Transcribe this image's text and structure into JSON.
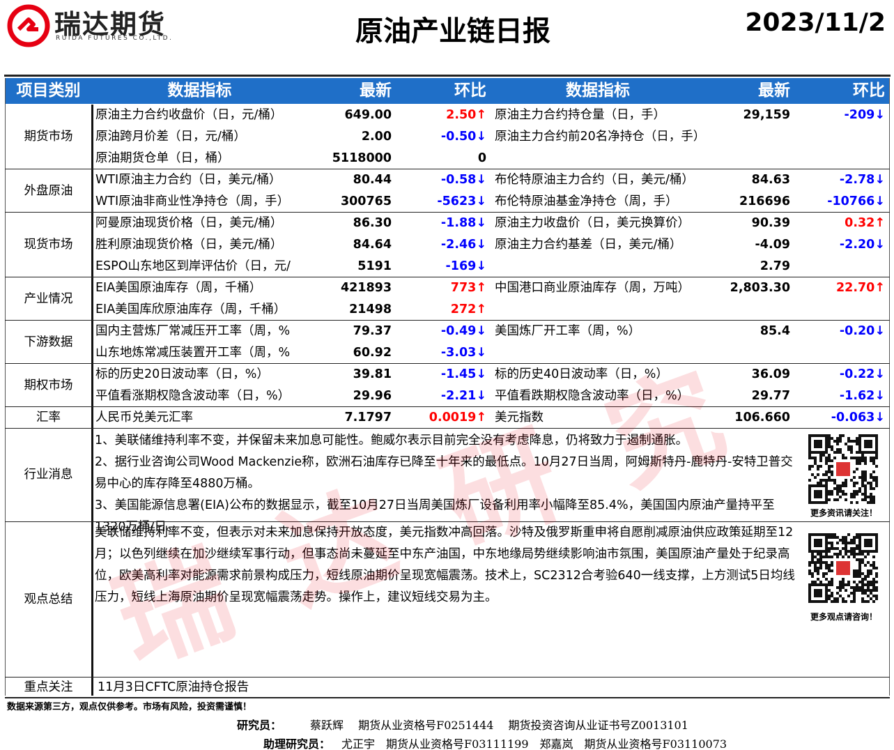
{
  "header": {
    "logo_name": "瑞达期货",
    "logo_en": "RUIDA FUTURES CO.,LTD.",
    "title": "原油产业链日报",
    "date": "2023/11/2"
  },
  "table": {
    "columns": [
      "项目类别",
      "数据指标",
      "最新",
      "环比",
      "数据指标",
      "最新",
      "环比"
    ],
    "groups": [
      {
        "category": "期货市场",
        "rows": [
          [
            "原油主力合约收盘价（日，元/桶）",
            "649.00",
            {
              "text": "2.50↑",
              "color": "#ff0000"
            },
            "原油主力合约持仓量（日，手）",
            "29,159",
            {
              "text": "-209↓",
              "color": "#0000ff"
            }
          ],
          [
            "原油跨月价差（日，元/桶）",
            "2.00",
            {
              "text": "-0.50↓",
              "color": "#0000ff"
            },
            "原油主力合约前20名净持仓（日，手）",
            null,
            null
          ],
          [
            "原油期货仓单（日，桶）",
            "5118000",
            {
              "text": "0",
              "color": "#000000"
            },
            null,
            null,
            null
          ]
        ]
      },
      {
        "category": "外盘原油",
        "rows": [
          [
            "WTI原油主力合约（日，美元/桶）",
            "80.44",
            {
              "text": "-0.58↓",
              "color": "#0000ff"
            },
            "布伦特原油主力合约（日，美元/桶）",
            "84.63",
            {
              "text": "-2.78↓",
              "color": "#0000ff"
            }
          ],
          [
            " WTI原油非商业性净持仓（周，手）",
            "300765",
            {
              "text": "-5623↓",
              "color": "#0000ff"
            },
            "布伦特原油基金净持仓（周，手）",
            "216696",
            {
              "text": "-10766↓",
              "color": "#0000ff"
            }
          ]
        ]
      },
      {
        "category": "现货市场",
        "rows": [
          [
            "阿曼原油现货价格（日，美元/桶）",
            "86.30",
            {
              "text": "-1.88↓",
              "color": "#0000ff"
            },
            "原油主力收盘价（日，美元换算价）",
            "90.39",
            {
              "text": "0.32↑",
              "color": "#ff0000"
            }
          ],
          [
            "胜利原油现货价格（日，美元/桶）",
            "84.64",
            {
              "text": "-2.46↓",
              "color": "#0000ff"
            },
            "原油主力合约基差（日，美元/桶）",
            "-4.09",
            {
              "text": "-2.20↓",
              "color": "#0000ff"
            }
          ],
          [
            "ESPO山东地区到岸评估价（日，元/",
            "5191",
            {
              "text": "-169↓",
              "color": "#0000ff"
            },
            null,
            "2.79",
            null
          ]
        ]
      },
      {
        "category": "产业情况",
        "rows": [
          [
            "EIA美国原油库存（周，千桶）",
            "421893",
            {
              "text": "773↑",
              "color": "#ff0000"
            },
            "中国港口商业原油库存（周，万吨）",
            "2,803.30",
            {
              "text": "22.70↑",
              "color": "#ff0000"
            }
          ],
          [
            "EIA美国库欣原油库存（周，千桶）",
            "21498",
            {
              "text": "272↑",
              "color": "#ff0000"
            },
            null,
            null,
            null
          ]
        ]
      },
      {
        "category": "下游数据",
        "rows": [
          [
            "国内主营炼厂常减压开工率（周，%",
            "79.37",
            {
              "text": "-0.49↓",
              "color": "#0000ff"
            },
            "美国炼厂开工率（周，%）",
            "85.4",
            {
              "text": "-0.20↓",
              "color": "#0000ff"
            }
          ],
          [
            "山东地炼常减压装置开工率（周，%",
            "60.92",
            {
              "text": "-3.03↓",
              "color": "#0000ff"
            },
            null,
            null,
            null
          ]
        ]
      },
      {
        "category": "期权市场",
        "rows": [
          [
            "标的历史20日波动率（日，%）",
            "39.81",
            {
              "text": "-1.45↓",
              "color": "#0000ff"
            },
            "标的历史40日波动率（日，%）",
            "36.09",
            {
              "text": "-0.22↓",
              "color": "#0000ff"
            }
          ],
          [
            "平值看涨期权隐含波动率（日，%）",
            "29.96",
            {
              "text": "-2.21↓",
              "color": "#0000ff"
            },
            "平值看跌期权隐含波动率（日，%）",
            "29.77",
            {
              "text": "-1.62↓",
              "color": "#0000ff"
            }
          ]
        ]
      },
      {
        "category": "汇率",
        "rows": [
          [
            "人民币兑美元汇率",
            "7.1797",
            {
              "text": "0.0019↑",
              "color": "#ff0000"
            },
            "美元指数",
            "106.660",
            {
              "text": "-0.063↓",
              "color": "#0000ff"
            }
          ]
        ]
      }
    ]
  },
  "news": {
    "label": "行业消息",
    "items": [
      "1、美联储维持利率不变，并保留未来加息可能性。鲍威尔表示目前完全没有考虑降息，仍将致力于遏制通胀。",
      "2、据行业咨询公司Wood Mackenzie称，欧洲石油库存已降至十年来的最低点。10月27日当周，阿姆斯特丹-鹿特丹-安特卫普交易中心的库存降至4880万桶。",
      "3、美国能源信息署(EIA)公布的数据显示，截至10月27日当周美国炼厂设备利用率小幅降至85.4%，美国国内原油产量持平至1320万桶/日。"
    ],
    "qr_caption": "更多资讯请关注！"
  },
  "views": {
    "label": "观点总结",
    "text": "美联储维持利率不变，但表示对未来加息保持开放态度，美元指数冲高回落。沙特及俄罗斯重申将自愿削减原油供应政策延期至12月；以色列继续在加沙继续军事行动，但事态尚未蔓延至中东产油国，中东地缘局势继续影响油市氛围，美国原油产量处于纪录高位，欧美高利率对能源需求前景构成压力，短线原油期价呈现宽幅震荡。技术上，SC2312合考验640一线支撑，上方测试5日均线压力，短线上海原油期价呈现宽幅震荡走势。操作上，建议短线交易为主。",
    "qr_caption": "更多观点请咨询！"
  },
  "focus": {
    "label": "重点关注",
    "text": "11月3日CFTC原油持仓报告"
  },
  "footer": {
    "disclaimer": "数据来源第三方，观点仅供参考。市场有风险，投资需谨慎！",
    "researcher_label": "研究员：",
    "researcher": "蔡跃辉　 期货从业资格号F0251444　 期货投资咨询从业证书号Z0013101",
    "assistant_label": "助理研究员：",
    "assistants": "尤正宇　期货从业资格号F03111199　郑嘉岚　期货从业资格号F03110073"
  },
  "watermark": "瑞达研究"
}
